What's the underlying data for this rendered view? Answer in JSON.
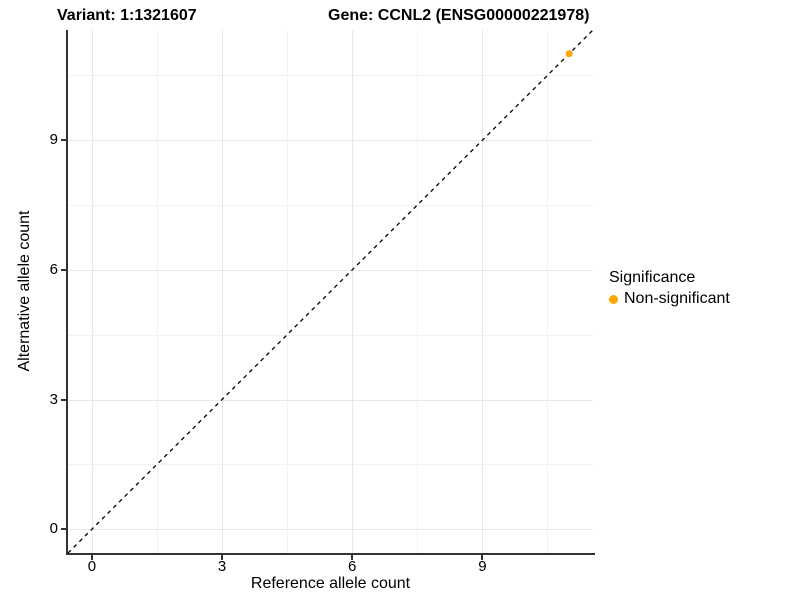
{
  "title": {
    "variant": "Variant: 1:1321607",
    "gene": "Gene: CCNL2 (ENSG00000221978)"
  },
  "chart_data": {
    "type": "scatter",
    "title": "Variant: 1:1321607   Gene: CCNL2 (ENSG00000221978)",
    "xlabel": "Reference allele count",
    "ylabel": "Alternative allele count",
    "xlim": [
      -0.55,
      11.55
    ],
    "ylim": [
      -0.55,
      11.55
    ],
    "x_ticks": [
      0,
      3,
      6,
      9
    ],
    "y_ticks": [
      0,
      3,
      6,
      9
    ],
    "x_minor_gridlines": [
      1.5,
      4.5,
      7.5,
      10.5
    ],
    "y_minor_gridlines": [
      1.5,
      4.5,
      7.5,
      10.5
    ],
    "grid": true,
    "series": [
      {
        "name": "Non-significant",
        "color": "#FFA500",
        "points": [
          [
            11,
            11
          ]
        ]
      }
    ],
    "reference_line": {
      "type": "identity y=x",
      "slope": 1,
      "intercept": 0,
      "style": "dashed",
      "color": "#000000"
    },
    "legend": {
      "title": "Significance",
      "position": "right",
      "entries": [
        {
          "label": "Non-significant",
          "color": "#FFA500"
        }
      ]
    }
  },
  "colors": {
    "background": "#ffffff",
    "axis_line": "#333333",
    "major_grid": "#e8e8e8",
    "minor_grid": "#f2f2f2",
    "point": "#FFA500",
    "text": "#000000"
  }
}
